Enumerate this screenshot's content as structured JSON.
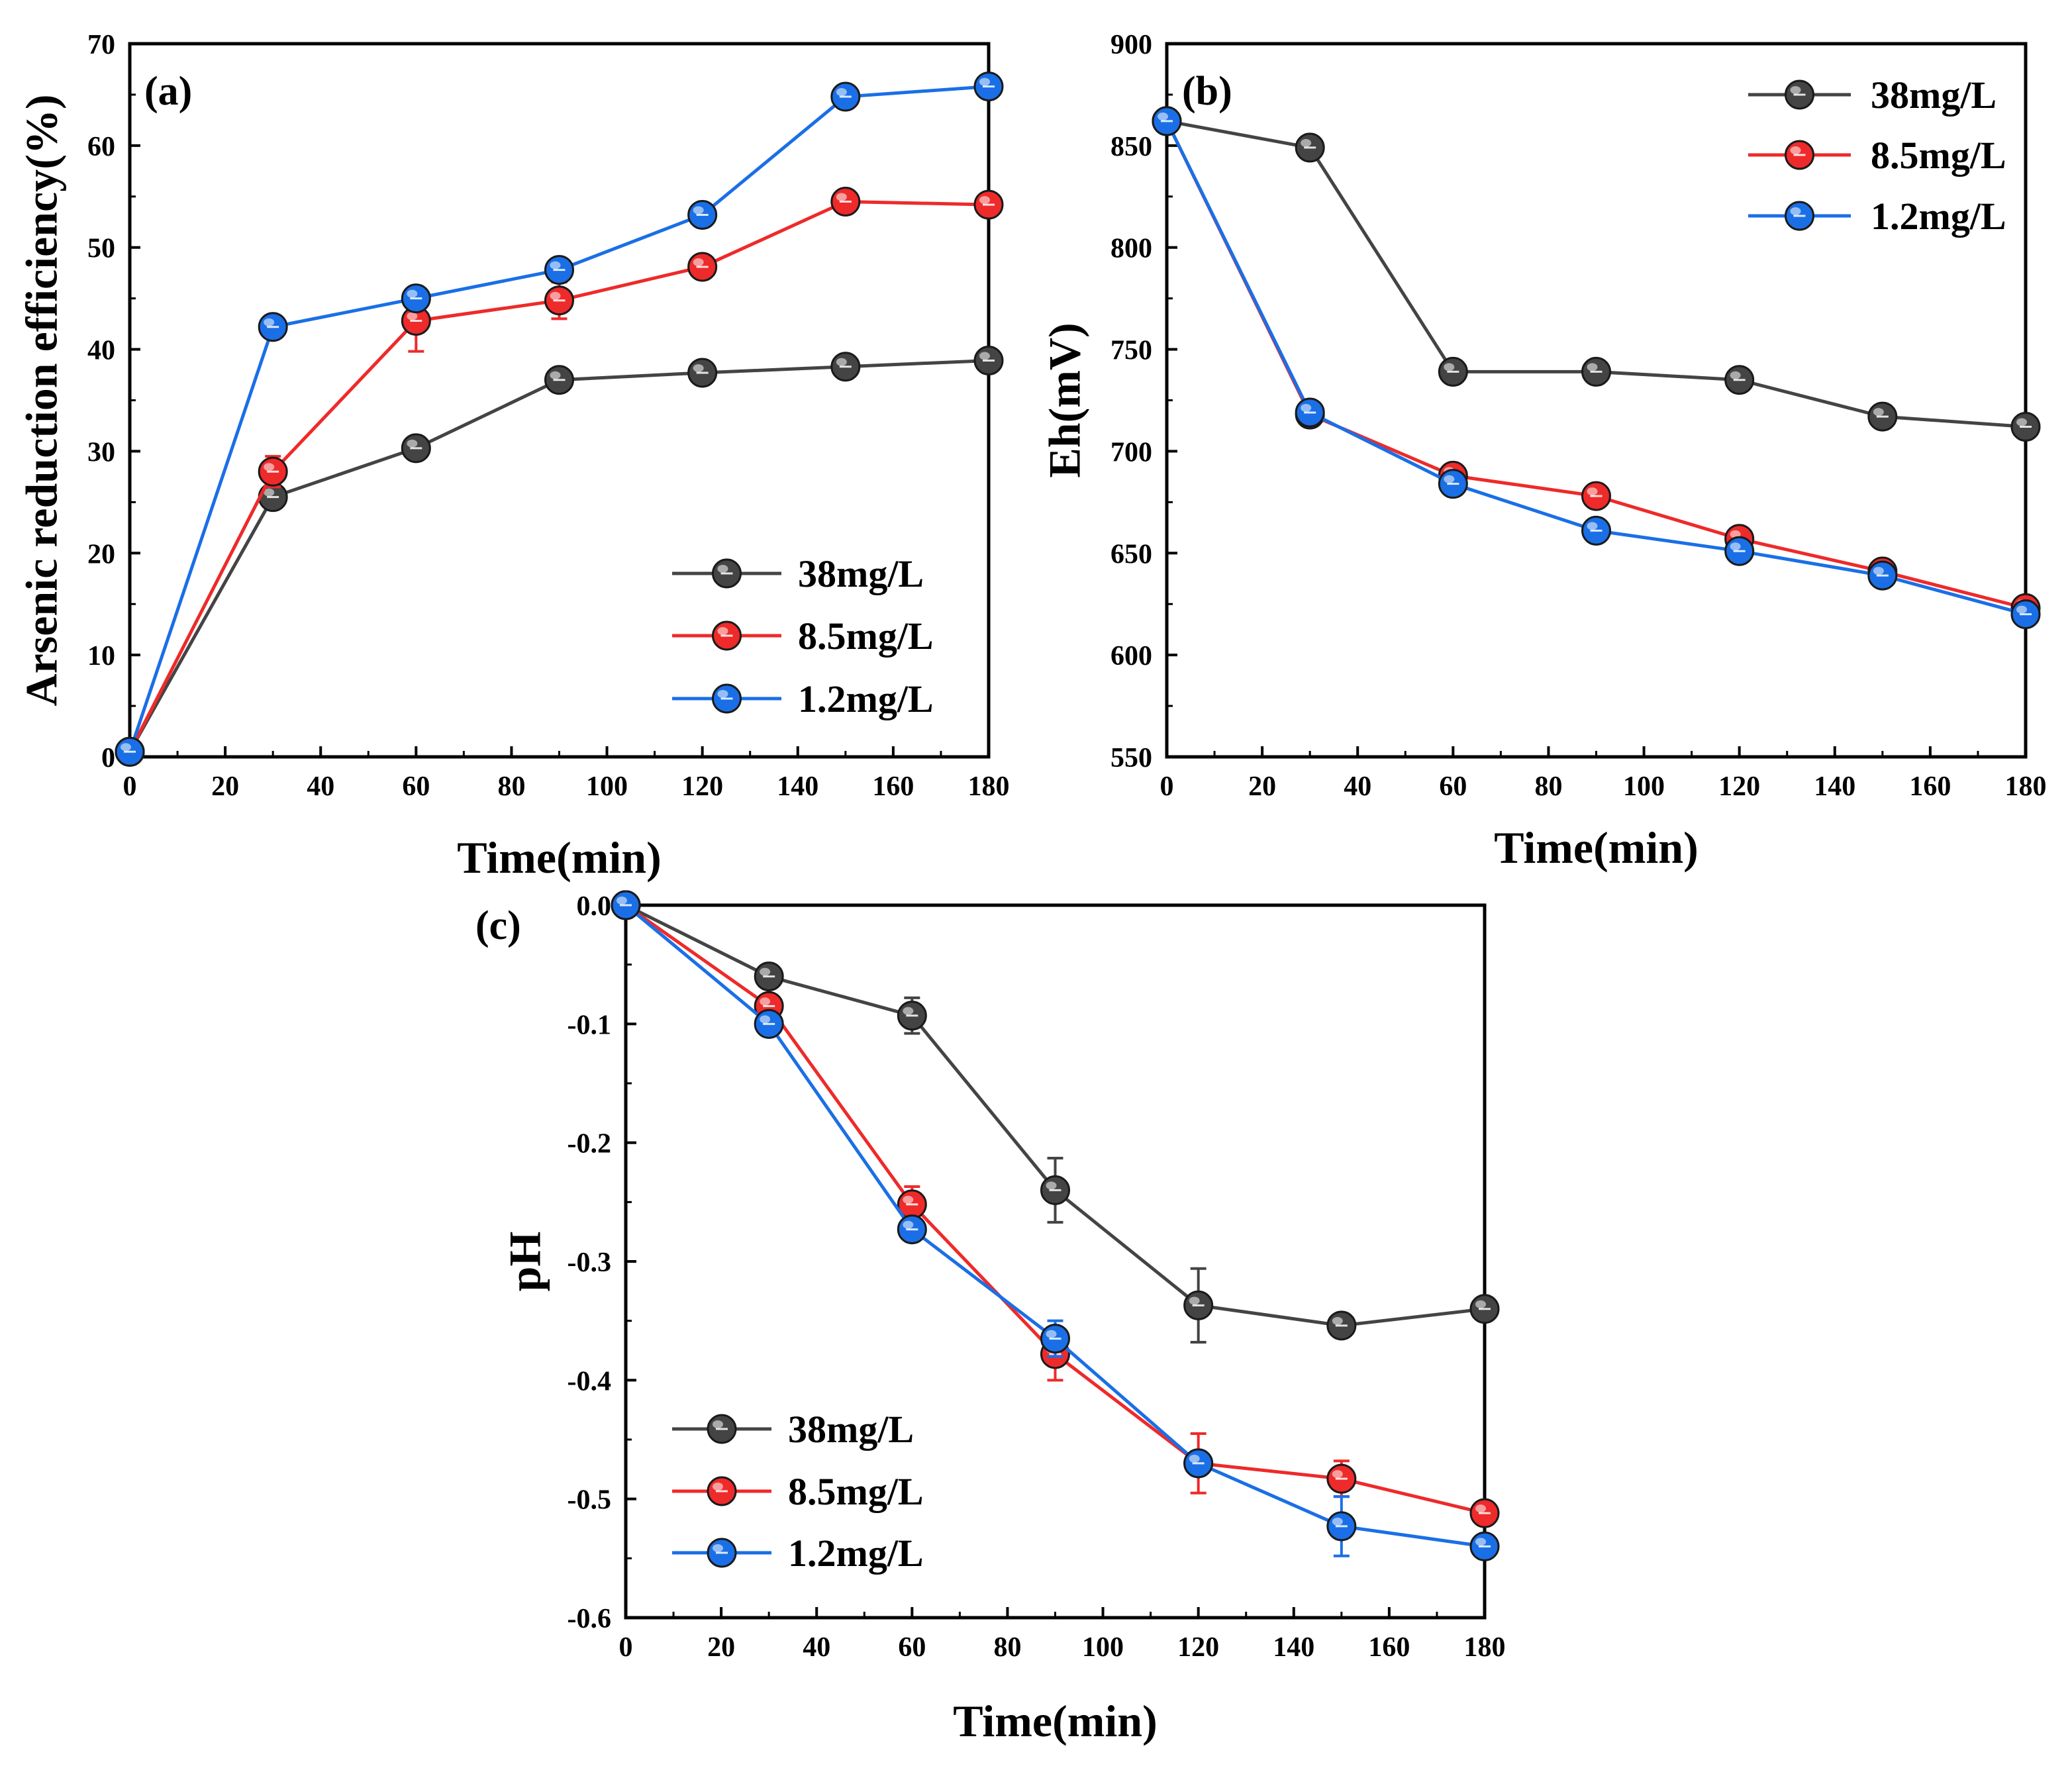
{
  "colors": {
    "38mg/L": "#444444",
    "8.5mg/L": "#ee2a2a",
    "1.2mg/L": "#1a6fe6"
  },
  "chart_data": [
    {
      "type": "line",
      "panel_label": "(a)",
      "xlabel": "Time(min)",
      "ylabel": "Arsenic reduction efficiency(%)",
      "xlim": [
        0,
        180
      ],
      "ylim": [
        0,
        70
      ],
      "x_ticks": [
        0,
        20,
        40,
        60,
        80,
        100,
        120,
        140,
        160,
        180
      ],
      "y_ticks": [
        0,
        10,
        20,
        30,
        40,
        50,
        60,
        70
      ],
      "x_tick_labels": [
        "0",
        "20",
        "40",
        "60",
        "80",
        "100",
        "120",
        "140",
        "160",
        "180"
      ],
      "y_tick_labels": [
        "0",
        "10",
        "20",
        "30",
        "40",
        "50",
        "60",
        "70"
      ],
      "legend_position": "bottom-right",
      "x": [
        0,
        30,
        60,
        90,
        120,
        150,
        180
      ],
      "series": [
        {
          "name": "38mg/L",
          "values": [
            0.5,
            25.5,
            30.3,
            37.0,
            37.7,
            38.3,
            38.9
          ],
          "errors": [
            0,
            0.6,
            0.6,
            0.6,
            0.5,
            0.5,
            0.5
          ]
        },
        {
          "name": "8.5mg/L",
          "values": [
            0.5,
            28.0,
            42.8,
            44.8,
            48.1,
            54.5,
            54.2
          ],
          "errors": [
            0,
            1.5,
            3.0,
            1.8,
            0.6,
            1.0,
            0.5
          ]
        },
        {
          "name": "1.2mg/L",
          "values": [
            0.5,
            42.2,
            45.0,
            47.8,
            53.2,
            64.8,
            65.8
          ],
          "errors": [
            0,
            0.6,
            0.5,
            0.6,
            0.6,
            0.8,
            0.5
          ]
        }
      ]
    },
    {
      "type": "line",
      "panel_label": "(b)",
      "xlabel": "Time(min)",
      "ylabel": "Eh(mV)",
      "xlim": [
        0,
        180
      ],
      "ylim": [
        550,
        900
      ],
      "x_ticks": [
        0,
        20,
        40,
        60,
        80,
        100,
        120,
        140,
        160,
        180
      ],
      "y_ticks": [
        550,
        600,
        650,
        700,
        750,
        800,
        850,
        900
      ],
      "x_tick_labels": [
        "0",
        "20",
        "40",
        "60",
        "80",
        "100",
        "120",
        "140",
        "160",
        "180"
      ],
      "y_tick_labels": [
        "550",
        "600",
        "650",
        "700",
        "750",
        "800",
        "850",
        "900"
      ],
      "legend_position": "top-right",
      "x": [
        0,
        30,
        60,
        90,
        120,
        150,
        180
      ],
      "series": [
        {
          "name": "38mg/L",
          "values": [
            862,
            849,
            739,
            739,
            735,
            717,
            712
          ],
          "errors": [
            0,
            2,
            2,
            2,
            2,
            2,
            2
          ]
        },
        {
          "name": "8.5mg/L",
          "values": [
            862,
            718,
            688,
            678,
            657,
            641,
            623
          ],
          "errors": [
            0,
            2,
            2,
            2,
            2,
            2,
            2
          ]
        },
        {
          "name": "1.2mg/L",
          "values": [
            862,
            719,
            684,
            661,
            651,
            639,
            620
          ],
          "errors": [
            0,
            2,
            2,
            2,
            2,
            2,
            2
          ]
        }
      ]
    },
    {
      "type": "line",
      "panel_label": "(c)",
      "xlabel": "Time(min)",
      "ylabel": "pH",
      "xlim": [
        0,
        180
      ],
      "ylim": [
        -0.6,
        0.0
      ],
      "x_ticks": [
        0,
        20,
        40,
        60,
        80,
        100,
        120,
        140,
        160,
        180
      ],
      "y_ticks": [
        0.0,
        -0.1,
        -0.2,
        -0.3,
        -0.4,
        -0.5,
        -0.6
      ],
      "x_tick_labels": [
        "0",
        "20",
        "40",
        "60",
        "80",
        "100",
        "120",
        "140",
        "160",
        "180"
      ],
      "y_tick_labels": [
        "0.0",
        "-0.1",
        "-0.2",
        "-0.3",
        "-0.4",
        "-0.5",
        "-0.6"
      ],
      "legend_position": "bottom-left",
      "x": [
        0,
        30,
        60,
        90,
        120,
        150,
        180
      ],
      "series": [
        {
          "name": "38mg/L",
          "values": [
            0.0,
            -0.06,
            -0.093,
            -0.24,
            -0.337,
            -0.354,
            -0.34
          ],
          "errors": [
            0,
            0.005,
            0.015,
            0.027,
            0.031,
            0.005,
            0.005
          ]
        },
        {
          "name": "8.5mg/L",
          "values": [
            0.0,
            -0.085,
            -0.252,
            -0.378,
            -0.47,
            -0.483,
            -0.512
          ],
          "errors": [
            0,
            0.008,
            0.015,
            0.022,
            0.025,
            0.015,
            0.007
          ]
        },
        {
          "name": "1.2mg/L",
          "values": [
            0.0,
            -0.1,
            -0.273,
            -0.365,
            -0.47,
            -0.523,
            -0.54
          ],
          "errors": [
            0,
            0.005,
            0.008,
            0.015,
            0.01,
            0.025,
            0.005
          ]
        }
      ]
    }
  ]
}
